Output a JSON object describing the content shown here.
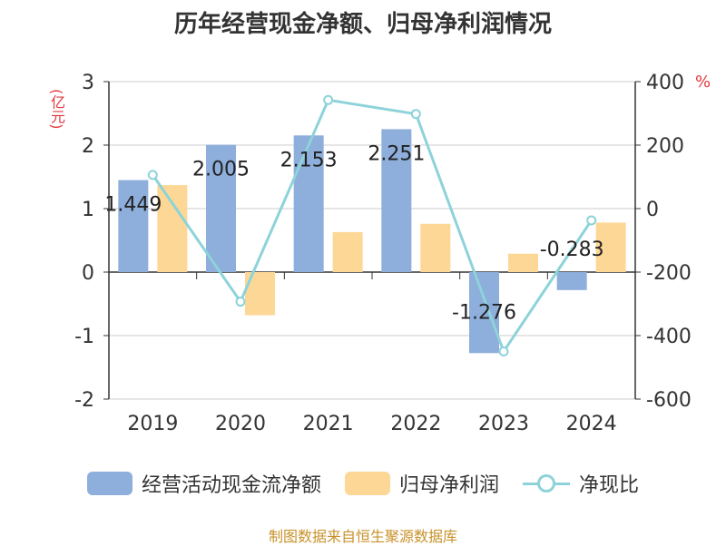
{
  "title": "历年经营现金净额、归母净利润情况",
  "left_unit": "(亿元)",
  "right_unit": "%",
  "source": "制图数据来自恒生聚源数据库",
  "legend": {
    "cash_flow": "经营活动现金流净额",
    "net_profit": "归母净利润",
    "ratio": "净现比"
  },
  "colors": {
    "cash_flow": "#8eaedb",
    "net_profit": "#fdd796",
    "ratio": "#8dd3d9"
  },
  "chart_data": {
    "type": "bar",
    "categories": [
      "2019",
      "2020",
      "2021",
      "2022",
      "2023",
      "2024"
    ],
    "series": [
      {
        "name": "经营活动现金流净额",
        "axis": "left",
        "type": "bar",
        "values": [
          1.449,
          2.005,
          2.153,
          2.251,
          -1.276,
          -0.283
        ],
        "labels": [
          "1.449",
          "2.005",
          "2.153",
          "2.251",
          "-1.276",
          "-0.283"
        ]
      },
      {
        "name": "归母净利润",
        "axis": "left",
        "type": "bar",
        "values": [
          1.37,
          -0.68,
          0.63,
          0.76,
          0.29,
          0.78
        ]
      },
      {
        "name": "净现比",
        "axis": "right",
        "type": "line",
        "values": [
          106,
          -293,
          342,
          298,
          -450,
          -37
        ]
      }
    ],
    "left_axis": {
      "min": -2,
      "max": 3,
      "ticks": [
        "3",
        "2",
        "1",
        "0",
        "-1",
        "-2"
      ]
    },
    "right_axis": {
      "min": -600,
      "max": 400,
      "ticks": [
        "400",
        "200",
        "0",
        "-200",
        "-400",
        "-600"
      ]
    },
    "grid": true,
    "legend_position": "bottom"
  }
}
